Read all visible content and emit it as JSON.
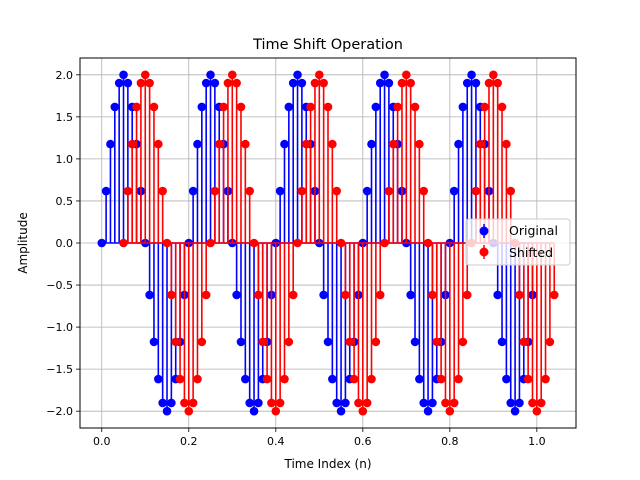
{
  "chart_data": {
    "type": "stem",
    "title": "Time Shift Operation",
    "xlabel": "Time Index (n)",
    "ylabel": "Amplitude",
    "xlim": [
      -0.05,
      1.09
    ],
    "ylim": [
      -2.2,
      2.2
    ],
    "xticks": [
      0.0,
      0.2,
      0.4,
      0.6,
      0.8,
      1.0
    ],
    "xtick_labels": [
      "0.0",
      "0.2",
      "0.4",
      "0.6",
      "0.8",
      "1.0"
    ],
    "yticks": [
      -2.0,
      -1.5,
      -1.0,
      -0.5,
      0.0,
      0.5,
      1.0,
      1.5,
      2.0
    ],
    "ytick_labels": [
      "−2.0",
      "−1.5",
      "−1.0",
      "−0.5",
      "0.0",
      "0.5",
      "1.0",
      "1.5",
      "2.0"
    ],
    "grid": true,
    "legend_position": "center-right",
    "series": [
      {
        "name": "Original",
        "color": "#0000ff",
        "x": [
          0.0,
          0.01,
          0.02,
          0.03,
          0.04,
          0.05,
          0.06,
          0.07,
          0.08,
          0.09,
          0.1,
          0.11,
          0.12,
          0.13,
          0.14,
          0.15,
          0.16,
          0.17,
          0.18,
          0.19,
          0.2,
          0.21,
          0.22,
          0.23,
          0.24,
          0.25,
          0.26,
          0.27,
          0.28,
          0.29,
          0.3,
          0.31,
          0.32,
          0.33,
          0.34,
          0.35,
          0.36,
          0.37,
          0.38,
          0.39,
          0.4,
          0.41,
          0.42,
          0.43,
          0.44,
          0.45,
          0.46,
          0.47,
          0.48,
          0.49,
          0.5,
          0.51,
          0.52,
          0.53,
          0.54,
          0.55,
          0.56,
          0.57,
          0.58,
          0.59,
          0.6,
          0.61,
          0.62,
          0.63,
          0.64,
          0.65,
          0.66,
          0.67,
          0.68,
          0.69,
          0.7,
          0.71,
          0.72,
          0.73,
          0.74,
          0.75,
          0.76,
          0.77,
          0.78,
          0.79,
          0.8,
          0.81,
          0.82,
          0.83,
          0.84,
          0.85,
          0.86,
          0.87,
          0.88,
          0.89,
          0.9,
          0.91,
          0.92,
          0.93,
          0.94,
          0.95,
          0.96,
          0.97,
          0.98,
          0.99
        ],
        "y": [
          0.0,
          0.618,
          1.176,
          1.618,
          1.902,
          2.0,
          1.902,
          1.618,
          1.176,
          0.618,
          0.0,
          -0.618,
          -1.176,
          -1.618,
          -1.902,
          -2.0,
          -1.902,
          -1.618,
          -1.176,
          -0.618,
          0.0,
          0.618,
          1.176,
          1.618,
          1.902,
          2.0,
          1.902,
          1.618,
          1.176,
          0.618,
          0.0,
          -0.618,
          -1.176,
          -1.618,
          -1.902,
          -2.0,
          -1.902,
          -1.618,
          -1.176,
          -0.618,
          0.0,
          0.618,
          1.176,
          1.618,
          1.902,
          2.0,
          1.902,
          1.618,
          1.176,
          0.618,
          0.0,
          -0.618,
          -1.176,
          -1.618,
          -1.902,
          -2.0,
          -1.902,
          -1.618,
          -1.176,
          -0.618,
          0.0,
          0.618,
          1.176,
          1.618,
          1.902,
          2.0,
          1.902,
          1.618,
          1.176,
          0.618,
          0.0,
          -0.618,
          -1.176,
          -1.618,
          -1.902,
          -2.0,
          -1.902,
          -1.618,
          -1.176,
          -0.618,
          0.0,
          0.618,
          1.176,
          1.618,
          1.902,
          2.0,
          1.902,
          1.618,
          1.176,
          0.618,
          0.0,
          -0.618,
          -1.176,
          -1.618,
          -1.902,
          -2.0,
          -1.902,
          -1.618,
          -1.176,
          -0.618
        ]
      },
      {
        "name": "Shifted",
        "color": "#ff0000",
        "x": [
          0.05,
          0.06,
          0.07,
          0.08,
          0.09,
          0.1,
          0.11,
          0.12,
          0.13,
          0.14,
          0.15,
          0.16,
          0.17,
          0.18,
          0.19,
          0.2,
          0.21,
          0.22,
          0.23,
          0.24,
          0.25,
          0.26,
          0.27,
          0.28,
          0.29,
          0.3,
          0.31,
          0.32,
          0.33,
          0.34,
          0.35,
          0.36,
          0.37,
          0.38,
          0.39,
          0.4,
          0.41,
          0.42,
          0.43,
          0.44,
          0.45,
          0.46,
          0.47,
          0.48,
          0.49,
          0.5,
          0.51,
          0.52,
          0.53,
          0.54,
          0.55,
          0.56,
          0.57,
          0.58,
          0.59,
          0.6,
          0.61,
          0.62,
          0.63,
          0.64,
          0.65,
          0.66,
          0.67,
          0.68,
          0.69,
          0.7,
          0.71,
          0.72,
          0.73,
          0.74,
          0.75,
          0.76,
          0.77,
          0.78,
          0.79,
          0.8,
          0.81,
          0.82,
          0.83,
          0.84,
          0.85,
          0.86,
          0.87,
          0.88,
          0.89,
          0.9,
          0.91,
          0.92,
          0.93,
          0.94,
          0.95,
          0.96,
          0.97,
          0.98,
          0.99,
          1.0,
          1.01,
          1.02,
          1.03,
          1.04
        ],
        "y": [
          0.0,
          0.618,
          1.176,
          1.618,
          1.902,
          2.0,
          1.902,
          1.618,
          1.176,
          0.618,
          0.0,
          -0.618,
          -1.176,
          -1.618,
          -1.902,
          -2.0,
          -1.902,
          -1.618,
          -1.176,
          -0.618,
          0.0,
          0.618,
          1.176,
          1.618,
          1.902,
          2.0,
          1.902,
          1.618,
          1.176,
          0.618,
          0.0,
          -0.618,
          -1.176,
          -1.618,
          -1.902,
          -2.0,
          -1.902,
          -1.618,
          -1.176,
          -0.618,
          0.0,
          0.618,
          1.176,
          1.618,
          1.902,
          2.0,
          1.902,
          1.618,
          1.176,
          0.618,
          0.0,
          -0.618,
          -1.176,
          -1.618,
          -1.902,
          -2.0,
          -1.902,
          -1.618,
          -1.176,
          -0.618,
          0.0,
          0.618,
          1.176,
          1.618,
          1.902,
          2.0,
          1.902,
          1.618,
          1.176,
          0.618,
          0.0,
          -0.618,
          -1.176,
          -1.618,
          -1.902,
          -2.0,
          -1.902,
          -1.618,
          -1.176,
          -0.618,
          0.0,
          0.618,
          1.176,
          1.618,
          1.902,
          2.0,
          1.902,
          1.618,
          1.176,
          0.618,
          0.0,
          -0.618,
          -1.176,
          -1.618,
          -1.902,
          -2.0,
          -1.902,
          -1.618,
          -1.176,
          -0.618
        ]
      }
    ]
  }
}
